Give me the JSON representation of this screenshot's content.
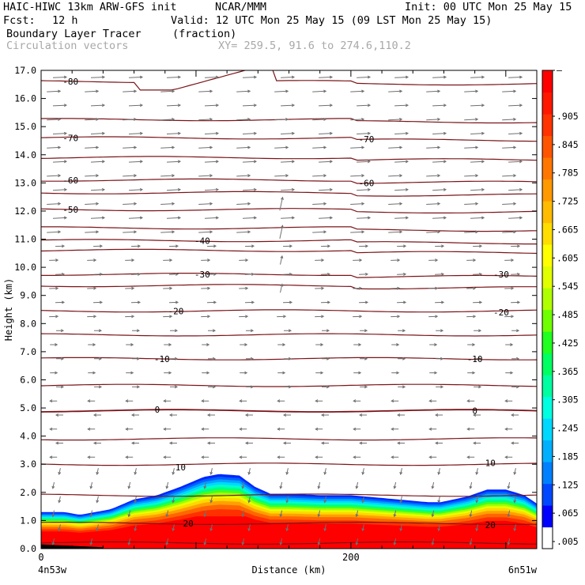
{
  "header": {
    "model": "HAIC-HIWC 13km ARW-GFS init",
    "org": "NCAR/MMM",
    "init": "Init: 00 UTC Mon 25 May 15",
    "fcst_label": "Fcst:",
    "fcst_value": "12 h",
    "valid": "Valid: 12 UTC Mon 25 May 15 (09 LST Mon 25 May 15)",
    "field": "Boundary Layer Tracer",
    "units": "(fraction)",
    "vectors": "Circulation vectors",
    "xy": "XY= 259.5, 91.6 to 274.6,110.2"
  },
  "colors": {
    "contour": "#7a1418",
    "vector": "#707070",
    "colorbar": [
      "#ffffff",
      "#0000ff",
      "#0048ff",
      "#0080ff",
      "#00b0ff",
      "#00d8ff",
      "#00ffe0",
      "#00ffa0",
      "#00ff60",
      "#20ff20",
      "#70ff00",
      "#b0ff00",
      "#e0ff00",
      "#ffff00",
      "#ffdd00",
      "#ffbb00",
      "#ff9900",
      "#ff7700",
      "#ff5500",
      "#ff3300",
      "#ff1800",
      "#ff0000"
    ]
  },
  "chart_data": {
    "type": "heatmap",
    "xlabel": "Distance (km)",
    "ylabel": "Height (km)",
    "ylim": [
      0,
      17
    ],
    "yticks": [
      "0.0",
      "1.0",
      "2.0",
      "3.0",
      "4.0",
      "5.0",
      "6.0",
      "7.0",
      "8.0",
      "9.0",
      "10.0",
      "11.0",
      "12.0",
      "13.0",
      "14.0",
      "15.0",
      "16.0",
      "17.0"
    ],
    "xlim": [
      0,
      320
    ],
    "xticks": [
      {
        "value": 0,
        "label": "0"
      },
      {
        "value": 200,
        "label": "200"
      }
    ],
    "x_endpoints": {
      "left": "4n53w",
      "right": "6n51w"
    },
    "colorbar_labels": [
      "–",
      ".905",
      ".845",
      ".785",
      ".725",
      ".665",
      ".605",
      ".545",
      ".485",
      ".425",
      ".365",
      ".305",
      ".245",
      ".185",
      ".125",
      ".065",
      ".005"
    ],
    "tracer_top_km": {
      "x": [
        0,
        15,
        25,
        45,
        60,
        75,
        90,
        105,
        115,
        128,
        138,
        148,
        160,
        180,
        200,
        230,
        250,
        258,
        275,
        288,
        300,
        312,
        320
      ],
      "y": [
        1.3,
        1.3,
        1.2,
        1.4,
        1.75,
        1.9,
        2.2,
        2.55,
        2.65,
        2.6,
        2.2,
        1.95,
        1.95,
        1.9,
        1.9,
        1.75,
        1.65,
        1.65,
        1.85,
        2.1,
        2.1,
        1.9,
        1.6
      ]
    },
    "temperature_contours_c": [
      -80,
      -70,
      -60,
      -50,
      -40,
      -30,
      -20,
      -10,
      0,
      10,
      20
    ],
    "contour_labels": [
      {
        "t": "-80",
        "x": 19,
        "y": 16.6
      },
      {
        "t": "-70",
        "x": 19,
        "y": 14.6
      },
      {
        "t": "-70",
        "x": 210,
        "y": 14.55
      },
      {
        "t": "-60",
        "x": 19,
        "y": 13.1
      },
      {
        "t": "-60",
        "x": 210,
        "y": 13.0
      },
      {
        "t": "-50",
        "x": 19,
        "y": 12.05
      },
      {
        "t": "-40",
        "x": 104,
        "y": 10.95
      },
      {
        "t": "-30",
        "x": 104,
        "y": 9.75
      },
      {
        "t": "-30",
        "x": 297,
        "y": 9.75
      },
      {
        "t": "-20",
        "x": 87,
        "y": 8.45
      },
      {
        "t": "-20",
        "x": 297,
        "y": 8.4
      },
      {
        "t": "-10",
        "x": 78,
        "y": 6.75
      },
      {
        "t": "-10",
        "x": 280,
        "y": 6.75
      },
      {
        "t": "0",
        "x": 75,
        "y": 4.95
      },
      {
        "t": "0",
        "x": 280,
        "y": 4.9
      },
      {
        "t": "10",
        "x": 90,
        "y": 2.9
      },
      {
        "t": "10",
        "x": 290,
        "y": 3.05
      },
      {
        "t": "20",
        "x": 95,
        "y": 0.9
      },
      {
        "t": "20",
        "x": 290,
        "y": 0.85
      }
    ]
  }
}
